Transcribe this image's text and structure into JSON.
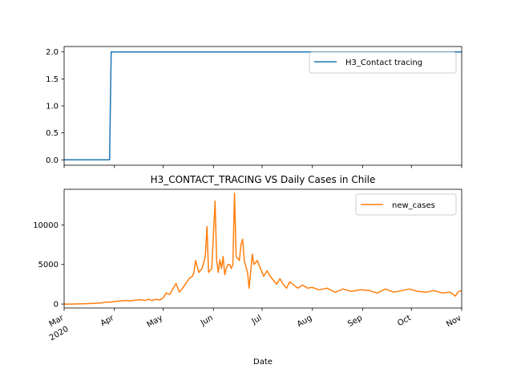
{
  "chart_data": [
    {
      "type": "line",
      "title": "",
      "xlabel": "",
      "ylabel": "",
      "ylim": [
        -0.1,
        2.1
      ],
      "xlim": [
        "2020-03-01",
        "2020-11-01"
      ],
      "yticks": [
        0.0,
        0.5,
        1.0,
        1.5,
        2.0
      ],
      "ytick_labels": [
        "0.0",
        "0.5",
        "1.0",
        "1.5",
        "2.0"
      ],
      "legend": "top-right",
      "grid": false,
      "series": [
        {
          "name": "H3_Contact tracing",
          "color": "#1f77b4",
          "x": [
            "2020-03-01",
            "2020-03-29",
            "2020-03-30",
            "2020-11-01"
          ],
          "values": [
            0,
            0,
            2,
            2
          ]
        }
      ]
    },
    {
      "type": "line",
      "title": "H3_CONTACT_TRACING VS Daily Cases in Chile",
      "xlabel": "Date",
      "ylabel": "",
      "ylim": [
        -500,
        14500
      ],
      "xlim": [
        "2020-03-01",
        "2020-11-01"
      ],
      "yticks": [
        0,
        5000,
        10000
      ],
      "ytick_labels": [
        "0",
        "5000",
        "10000"
      ],
      "xtick_labels": [
        {
          "date": "2020-03-01",
          "label": "Mar",
          "sub": "2020"
        },
        {
          "date": "2020-04-01",
          "label": "Apr"
        },
        {
          "date": "2020-05-01",
          "label": "May"
        },
        {
          "date": "2020-06-01",
          "label": "Jun"
        },
        {
          "date": "2020-07-01",
          "label": "Jul"
        },
        {
          "date": "2020-08-01",
          "label": "Aug"
        },
        {
          "date": "2020-09-01",
          "label": "Sep"
        },
        {
          "date": "2020-10-01",
          "label": "Oct"
        },
        {
          "date": "2020-11-01",
          "label": "Nov"
        }
      ],
      "legend": "top-right",
      "grid": false,
      "series": [
        {
          "name": "new_cases",
          "color": "#ff7f0e",
          "x": [
            "2020-03-01",
            "2020-03-05",
            "2020-03-10",
            "2020-03-15",
            "2020-03-20",
            "2020-03-24",
            "2020-03-27",
            "2020-03-30",
            "2020-04-02",
            "2020-04-05",
            "2020-04-08",
            "2020-04-11",
            "2020-04-14",
            "2020-04-17",
            "2020-04-20",
            "2020-04-22",
            "2020-04-24",
            "2020-04-27",
            "2020-04-29",
            "2020-05-01",
            "2020-05-03",
            "2020-05-05",
            "2020-05-07",
            "2020-05-09",
            "2020-05-11",
            "2020-05-13",
            "2020-05-15",
            "2020-05-17",
            "2020-05-19",
            "2020-05-20",
            "2020-05-21",
            "2020-05-23",
            "2020-05-25",
            "2020-05-27",
            "2020-05-28",
            "2020-05-29",
            "2020-05-31",
            "2020-06-02",
            "2020-06-03",
            "2020-06-04",
            "2020-06-05",
            "2020-06-06",
            "2020-06-07",
            "2020-06-08",
            "2020-06-09",
            "2020-06-10",
            "2020-06-11",
            "2020-06-12",
            "2020-06-13",
            "2020-06-14",
            "2020-06-15",
            "2020-06-17",
            "2020-06-18",
            "2020-06-19",
            "2020-06-20",
            "2020-06-22",
            "2020-06-23",
            "2020-06-25",
            "2020-06-26",
            "2020-06-28",
            "2020-06-30",
            "2020-07-02",
            "2020-07-04",
            "2020-07-06",
            "2020-07-08",
            "2020-07-10",
            "2020-07-12",
            "2020-07-14",
            "2020-07-16",
            "2020-07-18",
            "2020-07-20",
            "2020-07-23",
            "2020-07-26",
            "2020-07-29",
            "2020-08-01",
            "2020-08-05",
            "2020-08-10",
            "2020-08-15",
            "2020-08-20",
            "2020-08-25",
            "2020-08-31",
            "2020-09-05",
            "2020-09-10",
            "2020-09-15",
            "2020-09-20",
            "2020-09-25",
            "2020-09-30",
            "2020-10-05",
            "2020-10-10",
            "2020-10-15",
            "2020-10-20",
            "2020-10-25",
            "2020-10-28",
            "2020-10-30",
            "2020-11-01"
          ],
          "values": [
            0,
            0,
            20,
            50,
            100,
            150,
            250,
            250,
            350,
            400,
            450,
            400,
            500,
            550,
            450,
            600,
            450,
            600,
            500,
            800,
            1400,
            1200,
            1900,
            2600,
            1500,
            2000,
            2600,
            3200,
            3500,
            4000,
            5500,
            4000,
            4500,
            6000,
            9800,
            4000,
            4500,
            13000,
            5500,
            4000,
            5600,
            4500,
            6000,
            3700,
            4500,
            5000,
            5000,
            4500,
            5000,
            14000,
            6000,
            5500,
            7500,
            8200,
            5500,
            4000,
            2000,
            6300,
            5000,
            5500,
            4500,
            3500,
            4200,
            3500,
            3000,
            2500,
            3200,
            2500,
            2000,
            2800,
            2500,
            2000,
            2400,
            2000,
            2100,
            1800,
            2000,
            1500,
            1900,
            1600,
            1800,
            1700,
            1400,
            1900,
            1500,
            1700,
            1900,
            1600,
            1500,
            1700,
            1400,
            1500,
            1000,
            1600,
            1700
          ]
        }
      ]
    }
  ]
}
